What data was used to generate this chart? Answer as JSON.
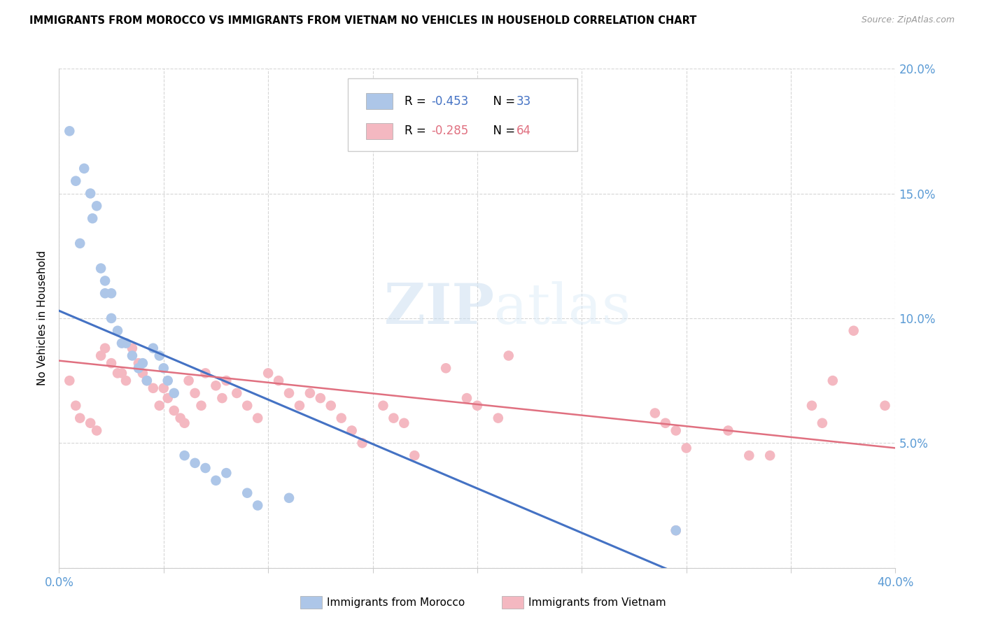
{
  "title": "IMMIGRANTS FROM MOROCCO VS IMMIGRANTS FROM VIETNAM NO VEHICLES IN HOUSEHOLD CORRELATION CHART",
  "source": "Source: ZipAtlas.com",
  "ylabel": "No Vehicles in Household",
  "xlim": [
    0.0,
    0.4
  ],
  "ylim": [
    0.0,
    0.2
  ],
  "xticks": [
    0.0,
    0.05,
    0.1,
    0.15,
    0.2,
    0.25,
    0.3,
    0.35,
    0.4
  ],
  "yticks": [
    0.0,
    0.05,
    0.1,
    0.15,
    0.2
  ],
  "ytick_labels": [
    "",
    "5.0%",
    "10.0%",
    "15.0%",
    "20.0%"
  ],
  "xtick_labels": [
    "0.0%",
    "",
    "",
    "",
    "",
    "",
    "",
    "",
    "40.0%"
  ],
  "morocco_color": "#adc6e8",
  "vietnam_color": "#f4b8c1",
  "morocco_R": -0.453,
  "morocco_N": 33,
  "vietnam_R": -0.285,
  "vietnam_N": 64,
  "morocco_line_color": "#4472c4",
  "vietnam_line_color": "#e07080",
  "morocco_line_x0": 0.0,
  "morocco_line_y0": 0.103,
  "morocco_line_x1": 0.295,
  "morocco_line_y1": -0.002,
  "vietnam_line_x0": 0.0,
  "vietnam_line_y0": 0.083,
  "vietnam_line_x1": 0.4,
  "vietnam_line_y1": 0.048,
  "morocco_scatter_x": [
    0.005,
    0.008,
    0.01,
    0.012,
    0.015,
    0.016,
    0.018,
    0.02,
    0.022,
    0.022,
    0.025,
    0.025,
    0.028,
    0.03,
    0.032,
    0.035,
    0.038,
    0.04,
    0.042,
    0.045,
    0.048,
    0.05,
    0.052,
    0.055,
    0.06,
    0.065,
    0.07,
    0.075,
    0.08,
    0.09,
    0.095,
    0.11,
    0.295
  ],
  "morocco_scatter_y": [
    0.175,
    0.155,
    0.13,
    0.16,
    0.15,
    0.14,
    0.145,
    0.12,
    0.115,
    0.11,
    0.11,
    0.1,
    0.095,
    0.09,
    0.09,
    0.085,
    0.08,
    0.082,
    0.075,
    0.088,
    0.085,
    0.08,
    0.075,
    0.07,
    0.045,
    0.042,
    0.04,
    0.035,
    0.038,
    0.03,
    0.025,
    0.028,
    0.015
  ],
  "vietnam_scatter_x": [
    0.005,
    0.008,
    0.01,
    0.015,
    0.018,
    0.02,
    0.022,
    0.025,
    0.028,
    0.03,
    0.032,
    0.035,
    0.038,
    0.04,
    0.042,
    0.045,
    0.048,
    0.05,
    0.052,
    0.055,
    0.058,
    0.06,
    0.062,
    0.065,
    0.068,
    0.07,
    0.075,
    0.078,
    0.08,
    0.085,
    0.09,
    0.095,
    0.1,
    0.105,
    0.11,
    0.115,
    0.12,
    0.125,
    0.13,
    0.135,
    0.14,
    0.145,
    0.155,
    0.16,
    0.165,
    0.17,
    0.185,
    0.195,
    0.2,
    0.21,
    0.215,
    0.285,
    0.29,
    0.295,
    0.3,
    0.32,
    0.33,
    0.34,
    0.36,
    0.365,
    0.37,
    0.38,
    0.395,
    0.295
  ],
  "vietnam_scatter_y": [
    0.075,
    0.065,
    0.06,
    0.058,
    0.055,
    0.085,
    0.088,
    0.082,
    0.078,
    0.078,
    0.075,
    0.088,
    0.082,
    0.078,
    0.075,
    0.072,
    0.065,
    0.072,
    0.068,
    0.063,
    0.06,
    0.058,
    0.075,
    0.07,
    0.065,
    0.078,
    0.073,
    0.068,
    0.075,
    0.07,
    0.065,
    0.06,
    0.078,
    0.075,
    0.07,
    0.065,
    0.07,
    0.068,
    0.065,
    0.06,
    0.055,
    0.05,
    0.065,
    0.06,
    0.058,
    0.045,
    0.08,
    0.068,
    0.065,
    0.06,
    0.085,
    0.062,
    0.058,
    0.055,
    0.048,
    0.055,
    0.045,
    0.045,
    0.065,
    0.058,
    0.075,
    0.095,
    0.065,
    0.015
  ],
  "background_color": "#ffffff",
  "grid_color": "#cccccc"
}
